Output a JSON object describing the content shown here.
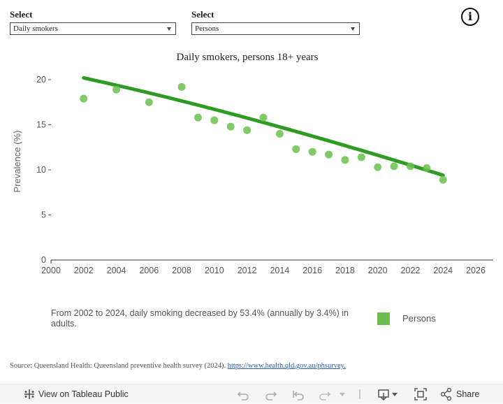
{
  "filters": [
    {
      "label": "Select",
      "value": "Daily smokers"
    },
    {
      "label": "Select",
      "value": "Persons"
    }
  ],
  "info_icon": "info-icon",
  "chart_data": {
    "type": "scatter",
    "title": "Daily smokers, persons 18+ years",
    "xlabel": "",
    "ylabel": "Prevalence (%)",
    "xlim": [
      2000,
      2026
    ],
    "ylim": [
      0,
      20
    ],
    "x_ticks": [
      2000,
      2002,
      2004,
      2006,
      2008,
      2010,
      2012,
      2014,
      2016,
      2018,
      2020,
      2022,
      2024,
      2026
    ],
    "y_ticks": [
      0,
      5,
      10,
      15,
      20
    ],
    "grid": false,
    "series": [
      {
        "name": "Persons",
        "x": [
          2002,
          2004,
          2006,
          2008,
          2009,
          2010,
          2011,
          2012,
          2013,
          2014,
          2015,
          2016,
          2017,
          2018,
          2019,
          2020,
          2021,
          2022,
          2023,
          2024
        ],
        "values": [
          17.9,
          18.9,
          17.5,
          19.2,
          15.8,
          15.5,
          14.8,
          14.4,
          15.8,
          14.0,
          12.3,
          12.0,
          11.7,
          11.1,
          11.4,
          10.3,
          10.4,
          10.4,
          10.2,
          8.9
        ]
      }
    ],
    "trend_line": {
      "x": [
        2002,
        2024
      ],
      "y": [
        20.2,
        9.4
      ]
    },
    "point_color": "#6cbf4f",
    "trend_color": "#2e9b23",
    "legend": {
      "position": "bottom-right",
      "entries": [
        "Persons"
      ]
    }
  },
  "summary": "From 2002 to 2024, daily smoking decreased by 53.4% (annually by 3.4%) in adults.",
  "source": {
    "text": "Source: Queensland Health: Queensland preventive health survey (2024).",
    "link": "https://www.health.qld.gov.au/phsurvey."
  },
  "toolbar": {
    "view_label": "View on Tableau Public",
    "share_label": "Share",
    "icons": [
      "tableau-logo-icon",
      "undo-icon",
      "redo-icon",
      "revert-icon",
      "refresh-icon",
      "dropdown-icon",
      "download-icon",
      "fullscreen-icon",
      "share-icon"
    ]
  }
}
